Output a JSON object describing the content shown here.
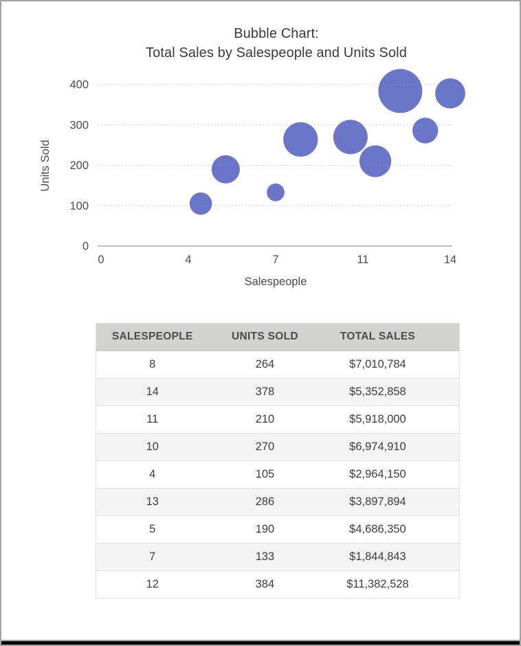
{
  "frame": {
    "background": "#ffffff",
    "border_color": "#a2a2a2",
    "bottom_bar_color": "#060606"
  },
  "chart": {
    "title_line1": "Bubble Chart:",
    "title_line2": "Total Sales by Salespeople and Units Sold",
    "x_axis_label": "Salespeople",
    "y_axis_label": "Units Sold"
  },
  "chart_data": {
    "type": "scatter",
    "subtype": "bubble",
    "title": "Bubble Chart: Total Sales by Salespeople and Units Sold",
    "xlabel": "Salespeople",
    "ylabel": "Units Sold",
    "xlim": [
      0,
      14
    ],
    "ylim": [
      0,
      400
    ],
    "grid": "horizontal-dashed",
    "legend": "none",
    "bubble_color": "#6B76C9",
    "size_encoding": "total_sales (bubble area proportional to value)",
    "xticks": [
      {
        "value": 0,
        "label": "0"
      },
      {
        "value": 3.5,
        "label": "4"
      },
      {
        "value": 7,
        "label": "7"
      },
      {
        "value": 10.5,
        "label": "11"
      },
      {
        "value": 14,
        "label": "14"
      }
    ],
    "yticks": [
      {
        "value": 0,
        "label": "0"
      },
      {
        "value": 100,
        "label": "100"
      },
      {
        "value": 200,
        "label": "200"
      },
      {
        "value": 300,
        "label": "300"
      },
      {
        "value": 400,
        "label": "400"
      }
    ],
    "points": [
      {
        "salespeople": 8,
        "units_sold": 264,
        "total_sales": 7010784,
        "total_sales_label": "$7,010,784"
      },
      {
        "salespeople": 14,
        "units_sold": 378,
        "total_sales": 5352858,
        "total_sales_label": "$5,352,858"
      },
      {
        "salespeople": 11,
        "units_sold": 210,
        "total_sales": 5918000,
        "total_sales_label": "$5,918,000"
      },
      {
        "salespeople": 10,
        "units_sold": 270,
        "total_sales": 6974910,
        "total_sales_label": "$6,974,910"
      },
      {
        "salespeople": 4,
        "units_sold": 105,
        "total_sales": 2964150,
        "total_sales_label": "$2,964,150"
      },
      {
        "salespeople": 13,
        "units_sold": 286,
        "total_sales": 3897894,
        "total_sales_label": "$3,897,894"
      },
      {
        "salespeople": 5,
        "units_sold": 190,
        "total_sales": 4686350,
        "total_sales_label": "$4,686,350"
      },
      {
        "salespeople": 7,
        "units_sold": 133,
        "total_sales": 1844843,
        "total_sales_label": "$1,844,843"
      },
      {
        "salespeople": 12,
        "units_sold": 384,
        "total_sales": 11382528,
        "total_sales_label": "$11,382,528"
      }
    ]
  },
  "table": {
    "headers": [
      "SALESPEOPLE",
      "UNITS SOLD",
      "TOTAL SALES"
    ],
    "rows": [
      [
        "8",
        "264",
        "$7,010,784"
      ],
      [
        "14",
        "378",
        "$5,352,858"
      ],
      [
        "11",
        "210",
        "$5,918,000"
      ],
      [
        "10",
        "270",
        "$6,974,910"
      ],
      [
        "4",
        "105",
        "$2,964,150"
      ],
      [
        "13",
        "286",
        "$3,897,894"
      ],
      [
        "5",
        "190",
        "$4,686,350"
      ],
      [
        "7",
        "133",
        "$1,844,843"
      ],
      [
        "12",
        "384",
        "$11,382,528"
      ]
    ],
    "header_bg": "#d2d2ce",
    "alt_row_bg": "#f4f4f2"
  }
}
